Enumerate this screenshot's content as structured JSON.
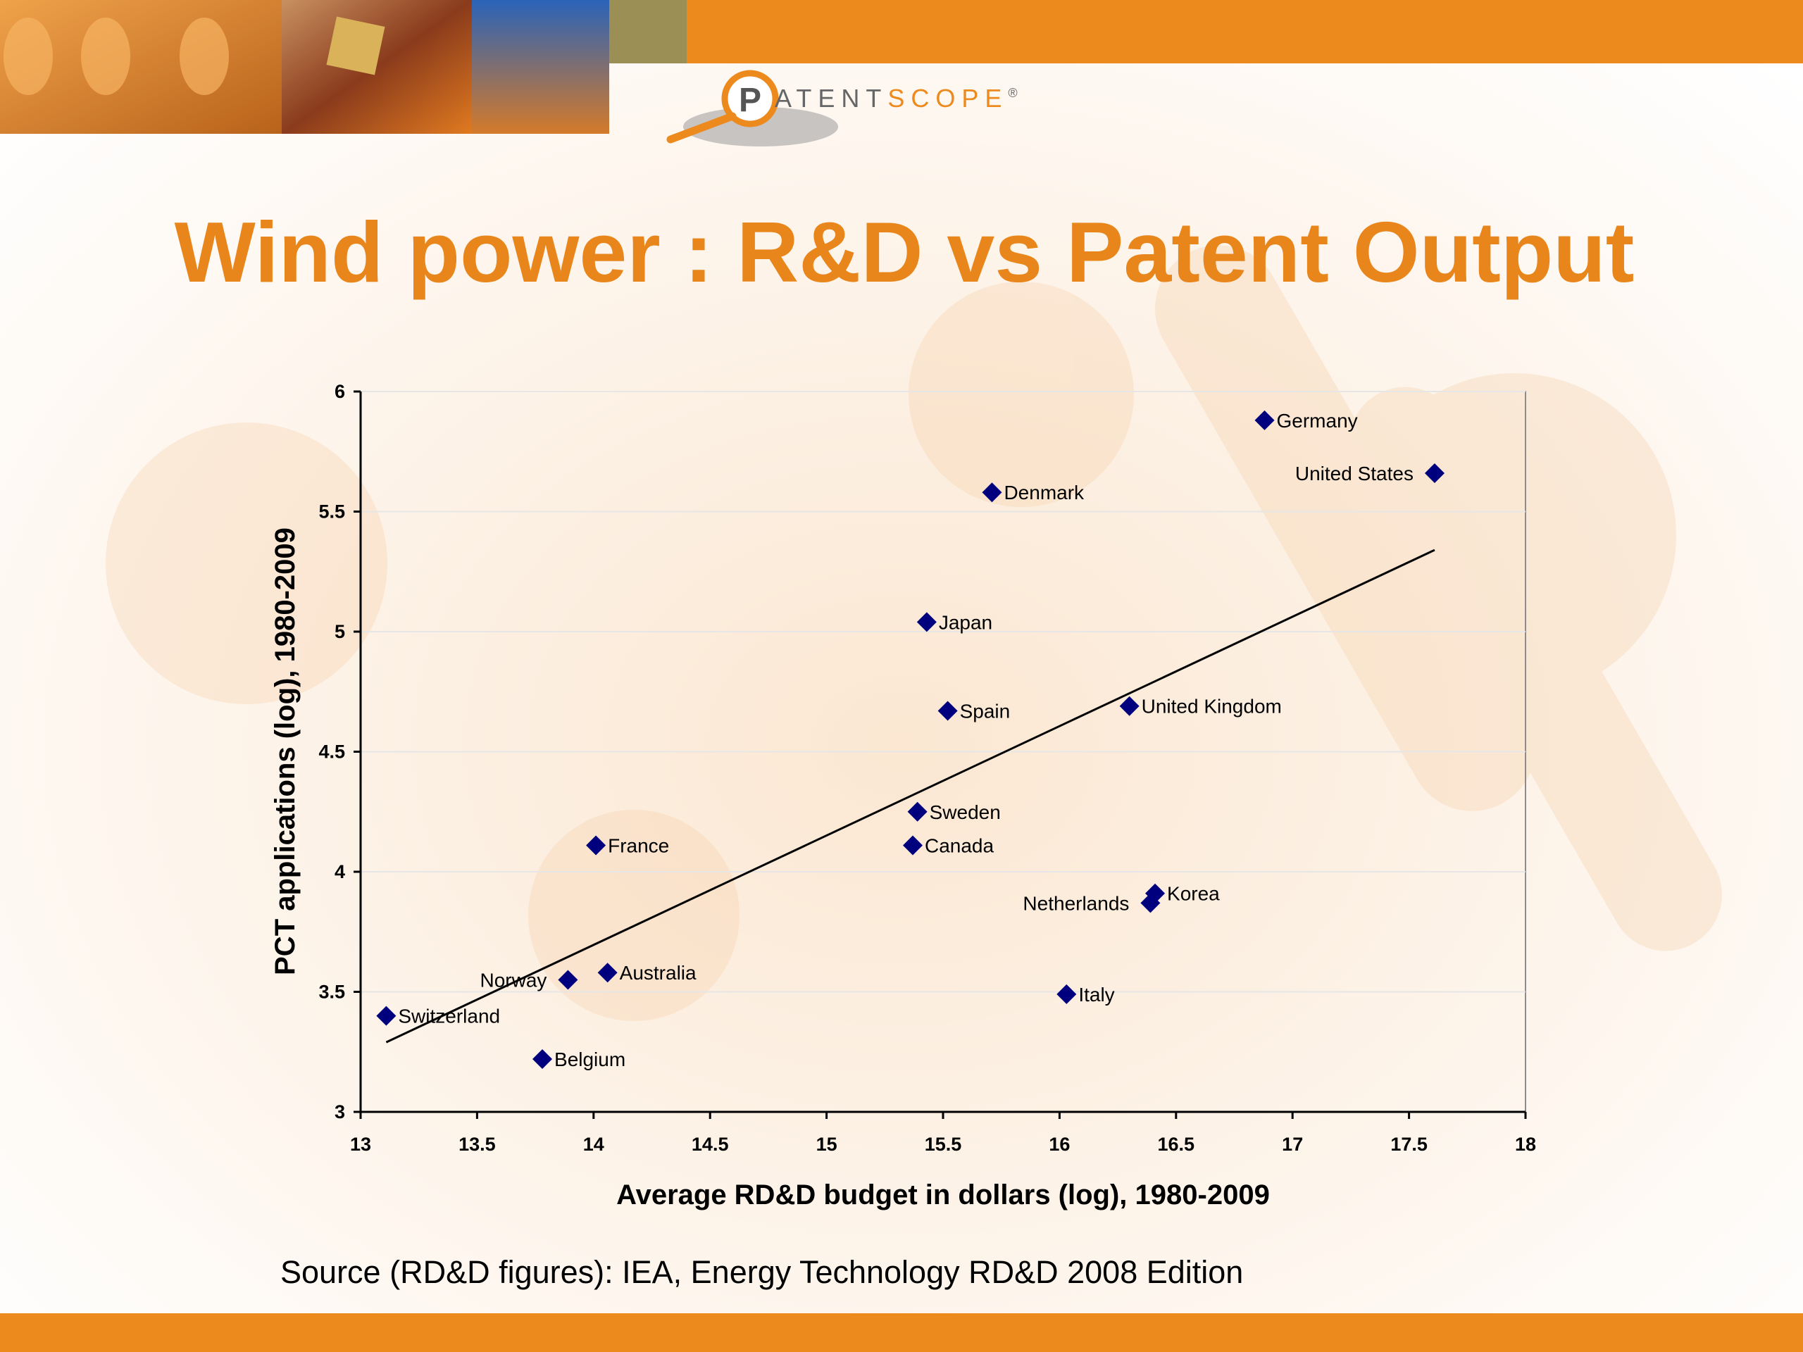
{
  "slide": {
    "title": "Wind power : R&D vs Patent Output",
    "source": "Source (RD&D figures): IEA, Energy Technology RD&D 2008 Edition",
    "logo": {
      "letter": "P",
      "text_dark": "ATENT",
      "text_light": "SCOPE",
      "mark": "®"
    },
    "colors": {
      "brand_orange": "#EC8A1E",
      "title_orange": "#E8861C",
      "marker": "#00007F",
      "logo_dark": "#555555"
    }
  },
  "chart_data": {
    "type": "scatter",
    "xlabel": "Average RD&D budget in dollars (log), 1980-2009",
    "ylabel": "PCT applications (log), 1980-2009",
    "xlim": [
      13,
      18
    ],
    "ylim": [
      3,
      6
    ],
    "xticks": [
      "13",
      "13.5",
      "14",
      "14.5",
      "15",
      "15.5",
      "16",
      "16.5",
      "17",
      "17.5",
      "18"
    ],
    "yticks": [
      "3",
      "3.5",
      "4",
      "4.5",
      "5",
      "5.5",
      "6"
    ],
    "grid": "horizontal",
    "points": [
      {
        "label": "Germany",
        "x": 16.88,
        "y": 5.88,
        "side": "right"
      },
      {
        "label": "United States",
        "x": 17.61,
        "y": 5.66,
        "side": "left"
      },
      {
        "label": "Denmark",
        "x": 15.71,
        "y": 5.58,
        "side": "right"
      },
      {
        "label": "Japan",
        "x": 15.43,
        "y": 5.04,
        "side": "right"
      },
      {
        "label": "Spain",
        "x": 15.52,
        "y": 4.67,
        "side": "right"
      },
      {
        "label": "United Kingdom",
        "x": 16.3,
        "y": 4.69,
        "side": "right"
      },
      {
        "label": "Sweden",
        "x": 15.39,
        "y": 4.25,
        "side": "right"
      },
      {
        "label": "Canada",
        "x": 15.37,
        "y": 4.11,
        "side": "right"
      },
      {
        "label": "France",
        "x": 14.01,
        "y": 4.11,
        "side": "right"
      },
      {
        "label": "Korea",
        "x": 16.41,
        "y": 3.91,
        "side": "right"
      },
      {
        "label": "Netherlands",
        "x": 16.39,
        "y": 3.87,
        "side": "left"
      },
      {
        "label": "Norway",
        "x": 13.89,
        "y": 3.55,
        "side": "left"
      },
      {
        "label": "Australia",
        "x": 14.06,
        "y": 3.58,
        "side": "right"
      },
      {
        "label": "Italy",
        "x": 16.03,
        "y": 3.49,
        "side": "right"
      },
      {
        "label": "Switzerland",
        "x": 13.11,
        "y": 3.4,
        "side": "right"
      },
      {
        "label": "Belgium",
        "x": 13.78,
        "y": 3.22,
        "side": "right"
      }
    ],
    "trendline": {
      "x": [
        13.11,
        17.61
      ],
      "y": [
        3.29,
        5.34
      ]
    }
  }
}
